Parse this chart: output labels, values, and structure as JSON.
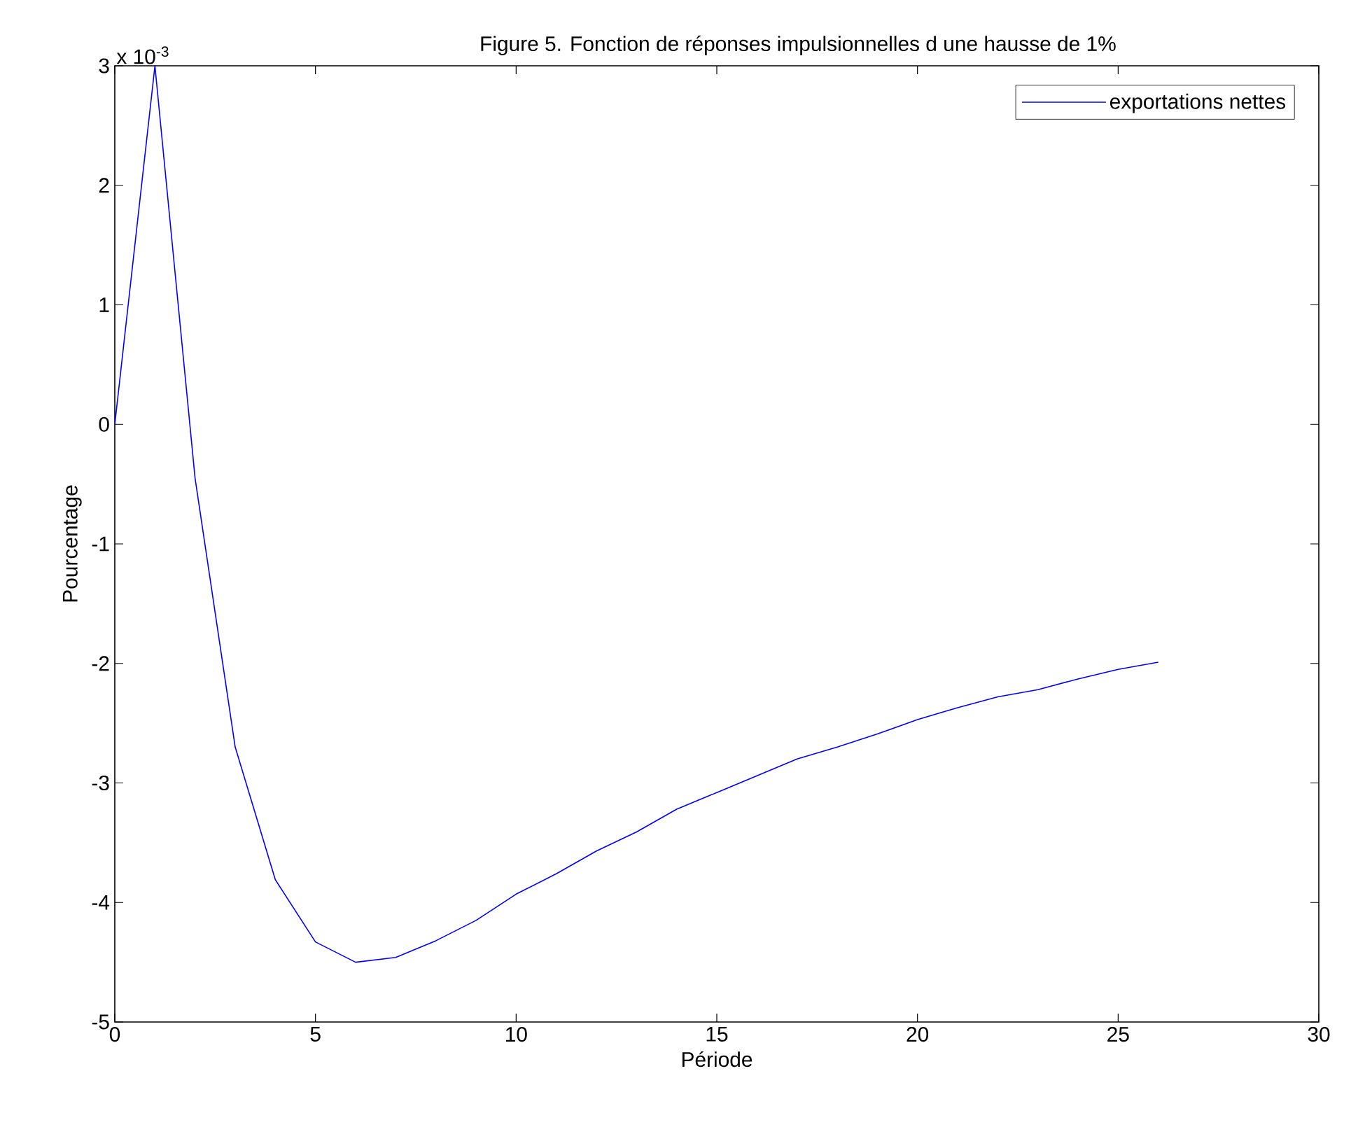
{
  "chart_data": {
    "type": "line",
    "title": "Figure 5. Fonction de réponses impulsionnelles d une hausse de 1%",
    "xlabel": "Période",
    "ylabel": "Pourcentage",
    "annotations": [
      "x 10$^{-3}$"
    ],
    "x": [
      0,
      1,
      2,
      3,
      4,
      5,
      6,
      7,
      8,
      9,
      10,
      11,
      12,
      13,
      14,
      15,
      16,
      17,
      18,
      19,
      20,
      21,
      22,
      23,
      24,
      25,
      26
    ],
    "series": [
      {
        "name": "exportations nettes",
        "color": "#0000ff",
        "values": [
          0,
          3.0,
          -0.45,
          -2.7,
          -3.81,
          -4.33,
          -4.5,
          -4.46,
          -4.32,
          -4.15,
          -3.93,
          -3.76,
          -3.57,
          -3.41,
          -3.22,
          -3.08,
          -2.94,
          -2.8,
          -2.7,
          -2.59,
          -2.47,
          -2.37,
          -2.28,
          -2.22,
          -2.13,
          -2.05,
          -1.99
        ]
      }
    ],
    "xlim": [
      0,
      30
    ],
    "ylim": [
      -5,
      3
    ],
    "xticks": [
      0,
      5,
      10,
      15,
      20,
      25,
      30
    ],
    "yticks": [
      -5,
      -4,
      -3,
      -2,
      -1,
      0,
      1,
      2,
      3
    ],
    "legend": "top right",
    "grid": false,
    "marker": "none",
    "line_style": "solid"
  }
}
